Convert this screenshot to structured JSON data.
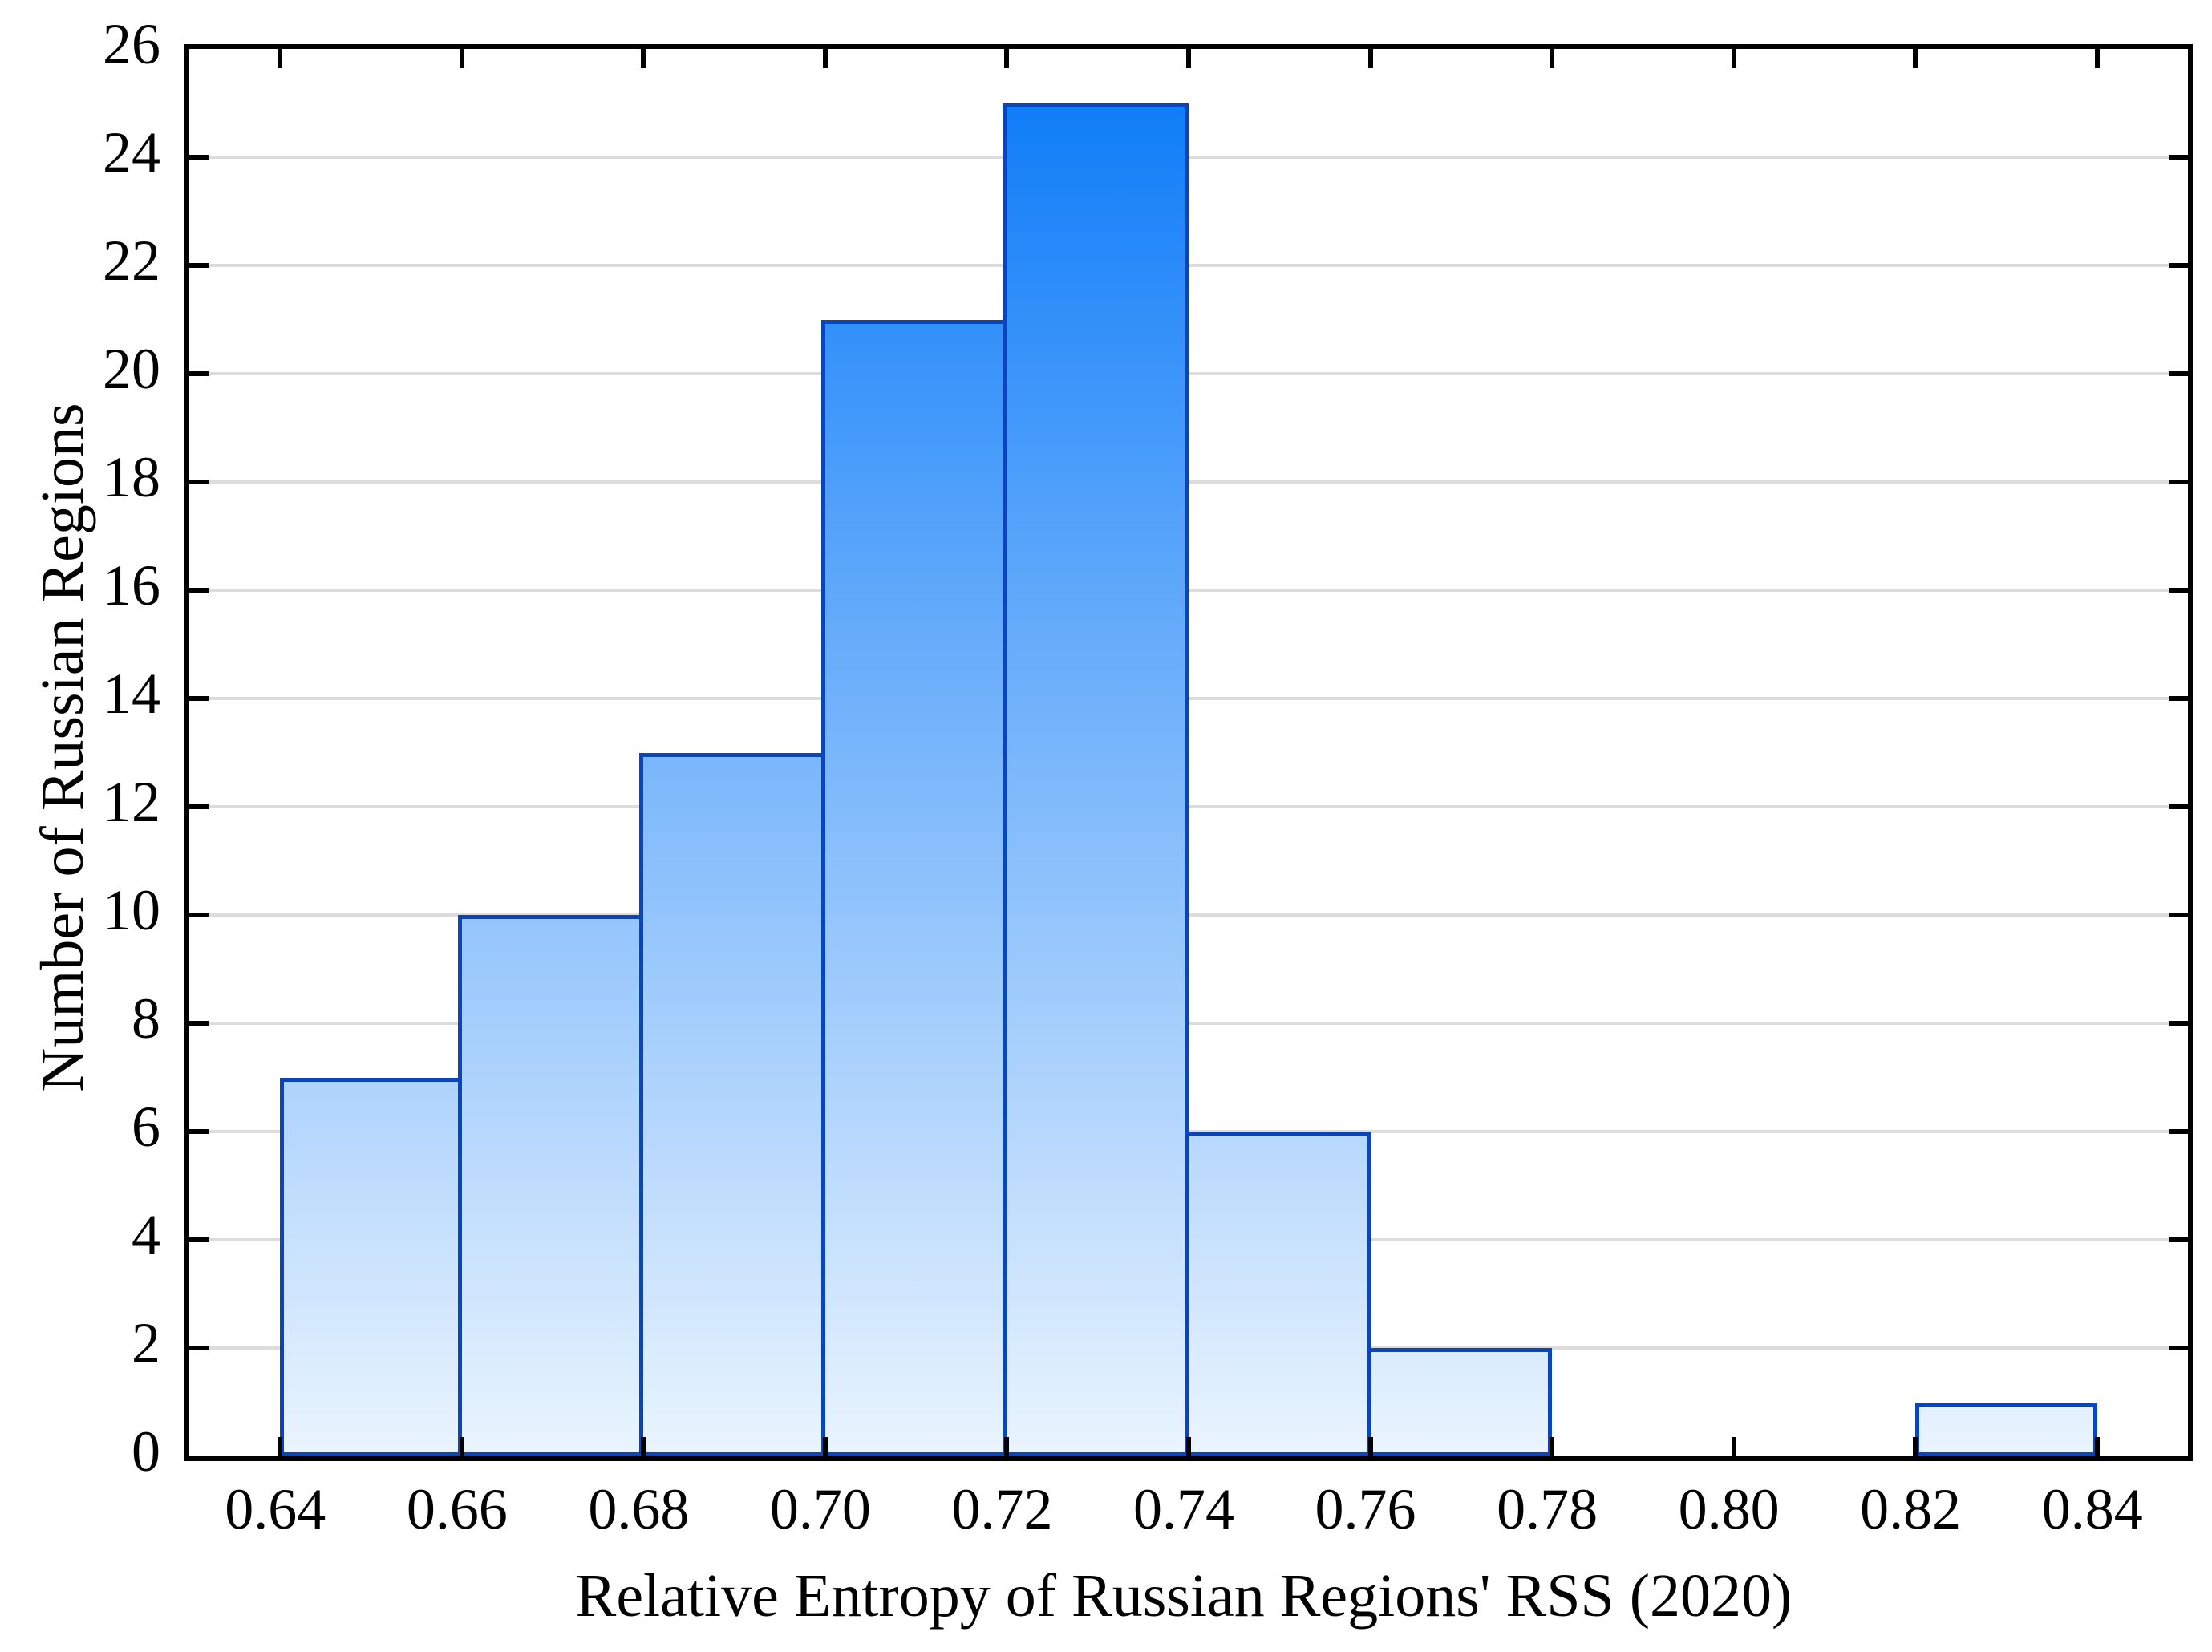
{
  "chart_data": {
    "type": "bar",
    "subtype": "histogram",
    "title": "",
    "xlabel": "Relative Entropy of Russian Regions' RSS (2020)",
    "ylabel": "Number of Russian Regions",
    "bin_width": 0.02,
    "bin_edges": [
      0.64,
      0.66,
      0.68,
      0.7,
      0.72,
      0.74,
      0.76,
      0.78,
      0.8,
      0.82,
      0.84
    ],
    "values": [
      7,
      10,
      13,
      21,
      25,
      6,
      2,
      0,
      0,
      1
    ],
    "xlim": [
      0.63,
      0.85
    ],
    "ylim": [
      0,
      26
    ],
    "xtick_labels": [
      "0.64",
      "0.66",
      "0.68",
      "0.70",
      "0.72",
      "0.74",
      "0.76",
      "0.78",
      "0.80",
      "0.82",
      "0.84"
    ],
    "ytick_labels": [
      "0",
      "2",
      "4",
      "6",
      "8",
      "10",
      "12",
      "14",
      "16",
      "18",
      "20",
      "22",
      "24",
      "26"
    ],
    "grid": "horizontal-major",
    "legend": null,
    "colors": {
      "bar_fill_top": "#0678f8",
      "bar_fill_bottom": "#eaf4fe",
      "bar_border": "#0a45c0",
      "axis": "#000000",
      "gridline": "#dcdcdc",
      "text": "#000000"
    }
  }
}
